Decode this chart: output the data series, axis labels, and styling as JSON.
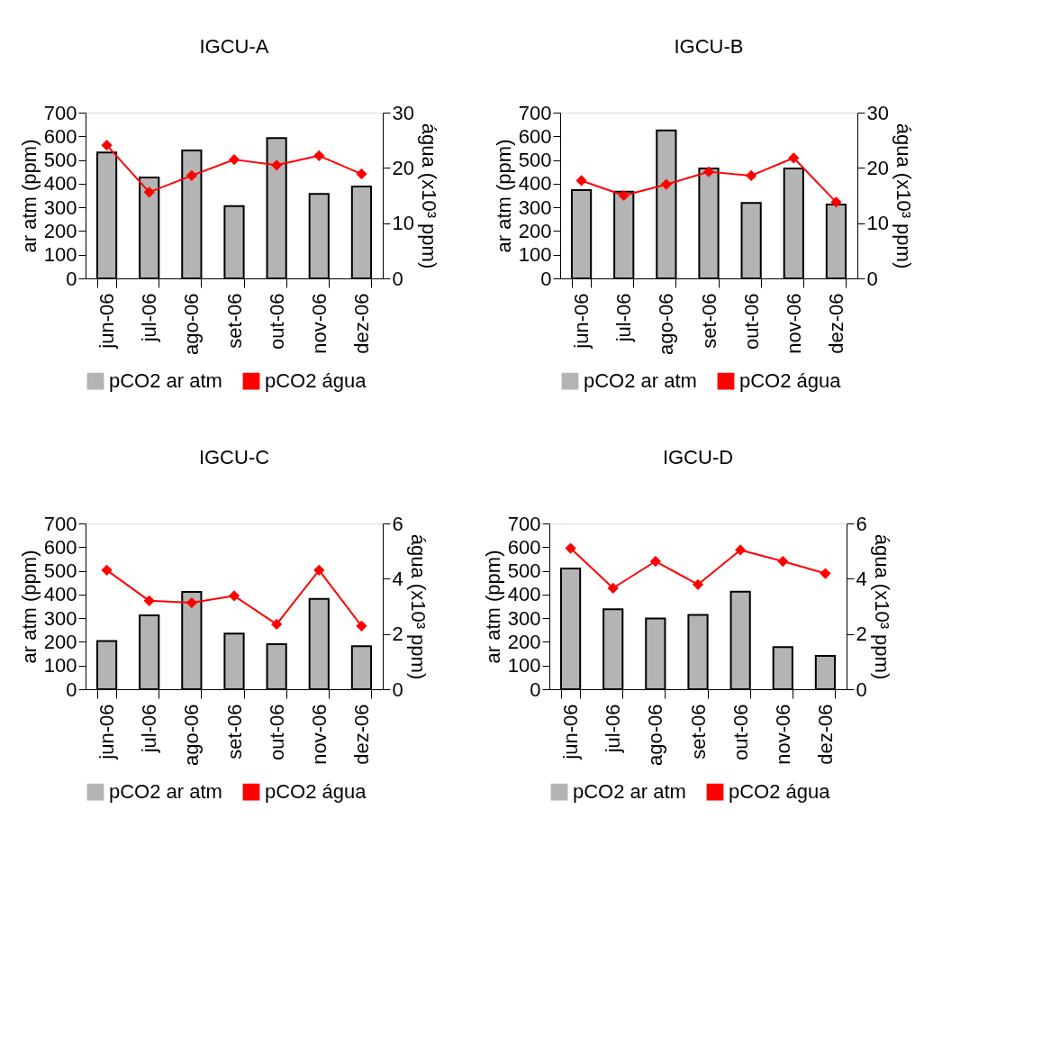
{
  "chart_data": [
    {
      "type": "bar",
      "title": "IGCU-A",
      "categories": [
        "jun-06",
        "jul-06",
        "ago-06",
        "set-06",
        "out-06",
        "nov-06",
        "dez-06"
      ],
      "ylabel": "ar atm (ppm)",
      "y2label": "água (x10³ ppm)",
      "ylim": [
        0,
        700
      ],
      "yticks": [
        0,
        100,
        200,
        300,
        400,
        500,
        600,
        700
      ],
      "y2lim": [
        0,
        30
      ],
      "y2ticks": [
        0,
        10,
        20,
        30
      ],
      "legend": "bottom",
      "marker": "diamond",
      "grid": false,
      "series": [
        {
          "name": "pCO2 ar atm",
          "color": "#b4b4b4",
          "values": [
            532,
            426,
            540,
            305,
            593,
            357,
            388
          ]
        },
        {
          "name": "pCO2 água",
          "type": "line",
          "axis": "y2",
          "color": "#ff0000",
          "values": [
            24.1,
            15.6,
            18.6,
            21.5,
            20.5,
            22.2,
            18.9
          ]
        }
      ]
    },
    {
      "type": "bar",
      "title": "IGCU-B",
      "categories": [
        "jun-06",
        "jul-06",
        "ago-06",
        "set-06",
        "out-06",
        "nov-06",
        "dez-06"
      ],
      "ylabel": "ar atm (ppm)",
      "y2label": "água (x10³ ppm)",
      "ylim": [
        0,
        700
      ],
      "yticks": [
        0,
        100,
        200,
        300,
        400,
        500,
        600,
        700
      ],
      "y2lim": [
        0,
        30
      ],
      "y2ticks": [
        0,
        10,
        20,
        30
      ],
      "legend": "bottom",
      "marker": "diamond",
      "grid": false,
      "series": [
        {
          "name": "pCO2 ar atm",
          "color": "#b4b4b4",
          "values": [
            373,
            366,
            625,
            464,
            319,
            464,
            312
          ]
        },
        {
          "name": "pCO2 água",
          "type": "line",
          "axis": "y2",
          "color": "#ff0000",
          "values": [
            17.7,
            15.0,
            17.0,
            19.3,
            18.6,
            21.8,
            13.8
          ]
        }
      ]
    },
    {
      "type": "bar",
      "title": "IGCU-C",
      "categories": [
        "jun-06",
        "jul-06",
        "ago-06",
        "set-06",
        "out-06",
        "nov-06",
        "dez-06"
      ],
      "ylabel": "ar atm (ppm)",
      "y2label": "água (x10³ ppm)",
      "ylim": [
        0,
        700
      ],
      "yticks": [
        0,
        100,
        200,
        300,
        400,
        500,
        600,
        700
      ],
      "y2lim": [
        0,
        6
      ],
      "y2ticks": [
        0,
        2,
        4,
        6
      ],
      "legend": "bottom",
      "marker": "diamond",
      "grid": false,
      "series": [
        {
          "name": "pCO2 ar atm",
          "color": "#b4b4b4",
          "values": [
            204,
            312,
            411,
            235,
            190,
            381,
            182
          ]
        },
        {
          "name": "pCO2 água",
          "type": "line",
          "axis": "y2",
          "color": "#ff0000",
          "values": [
            4.31,
            3.2,
            3.13,
            3.38,
            2.35,
            4.31,
            2.29
          ]
        }
      ]
    },
    {
      "type": "bar",
      "title": "IGCU-D",
      "categories": [
        "jun-06",
        "jul-06",
        "ago-06",
        "set-06",
        "out-06",
        "nov-06",
        "dez-06"
      ],
      "ylabel": "ar atm (ppm)",
      "y2label": "água (x10³ ppm)",
      "ylim": [
        0,
        700
      ],
      "yticks": [
        0,
        100,
        200,
        300,
        400,
        500,
        600,
        700
      ],
      "y2lim": [
        0,
        6
      ],
      "y2ticks": [
        0,
        2,
        4,
        6
      ],
      "legend": "bottom",
      "marker": "diamond",
      "grid": false,
      "series": [
        {
          "name": "pCO2 ar atm",
          "color": "#b4b4b4",
          "values": [
            510,
            338,
            299,
            314,
            412,
            178,
            141
          ]
        },
        {
          "name": "pCO2 água",
          "type": "line",
          "axis": "y2",
          "color": "#ff0000",
          "values": [
            5.1,
            3.66,
            4.63,
            3.79,
            5.04,
            4.63,
            4.19
          ]
        }
      ]
    }
  ]
}
